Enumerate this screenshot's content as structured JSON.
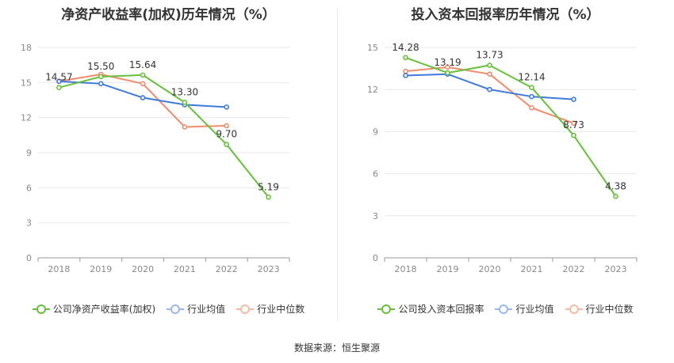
{
  "charts": {
    "left": {
      "title": "净资产收益率(加权)历年情况（%）",
      "legend": [
        "公司净资产收益率(加权)",
        "行业均值",
        "行业中位数"
      ]
    },
    "right": {
      "title": "投入资本回报率历年情况（%）",
      "legend": [
        "公司投入资本回报率",
        "行业均值",
        "行业中位数"
      ]
    }
  },
  "source": "数据来源：恒生聚源",
  "colors": {
    "company": "#66c03b",
    "industry_avg": "#3d7ad9",
    "industry_median": "#f08c6b",
    "grid": "#e8e8ee",
    "axis": "#999999"
  },
  "chart_data": [
    {
      "type": "line",
      "title": "净资产收益率(加权)历年情况（%）",
      "categories": [
        "2018",
        "2019",
        "2020",
        "2021",
        "2022",
        "2023"
      ],
      "ylim": [
        0,
        18
      ],
      "yticks": [
        0,
        3,
        6,
        9,
        12,
        15,
        18
      ],
      "grid": true,
      "legend_position": "bottom",
      "series": [
        {
          "name": "公司净资产收益率(加权)",
          "color": "#66c03b",
          "values": [
            14.57,
            15.5,
            15.64,
            13.3,
            9.7,
            5.19
          ],
          "labels": [
            "14.57",
            "15.50",
            "15.64",
            "13.30",
            "9.70",
            "5.19"
          ]
        },
        {
          "name": "行业均值",
          "color": "#3d7ad9",
          "values": [
            15.1,
            14.9,
            13.7,
            13.1,
            12.9,
            null
          ]
        },
        {
          "name": "行业中位数",
          "color": "#f08c6b",
          "values": [
            15.1,
            15.7,
            14.9,
            11.2,
            11.3,
            null
          ]
        }
      ]
    },
    {
      "type": "line",
      "title": "投入资本回报率历年情况（%）",
      "categories": [
        "2018",
        "2019",
        "2020",
        "2021",
        "2022",
        "2023"
      ],
      "ylim": [
        0,
        15
      ],
      "yticks": [
        0,
        3,
        6,
        9,
        12,
        15
      ],
      "grid": true,
      "legend_position": "bottom",
      "series": [
        {
          "name": "公司投入资本回报率",
          "color": "#66c03b",
          "values": [
            14.28,
            13.19,
            13.73,
            12.14,
            8.73,
            4.38
          ],
          "labels": [
            "14.28",
            "13.19",
            "13.73",
            "12.14",
            "8.73",
            "4.38"
          ]
        },
        {
          "name": "行业均值",
          "color": "#3d7ad9",
          "values": [
            13.0,
            13.1,
            12.0,
            11.5,
            11.3,
            null
          ]
        },
        {
          "name": "行业中位数",
          "color": "#f08c6b",
          "values": [
            13.3,
            13.6,
            13.1,
            10.7,
            9.6,
            null
          ]
        }
      ]
    }
  ]
}
